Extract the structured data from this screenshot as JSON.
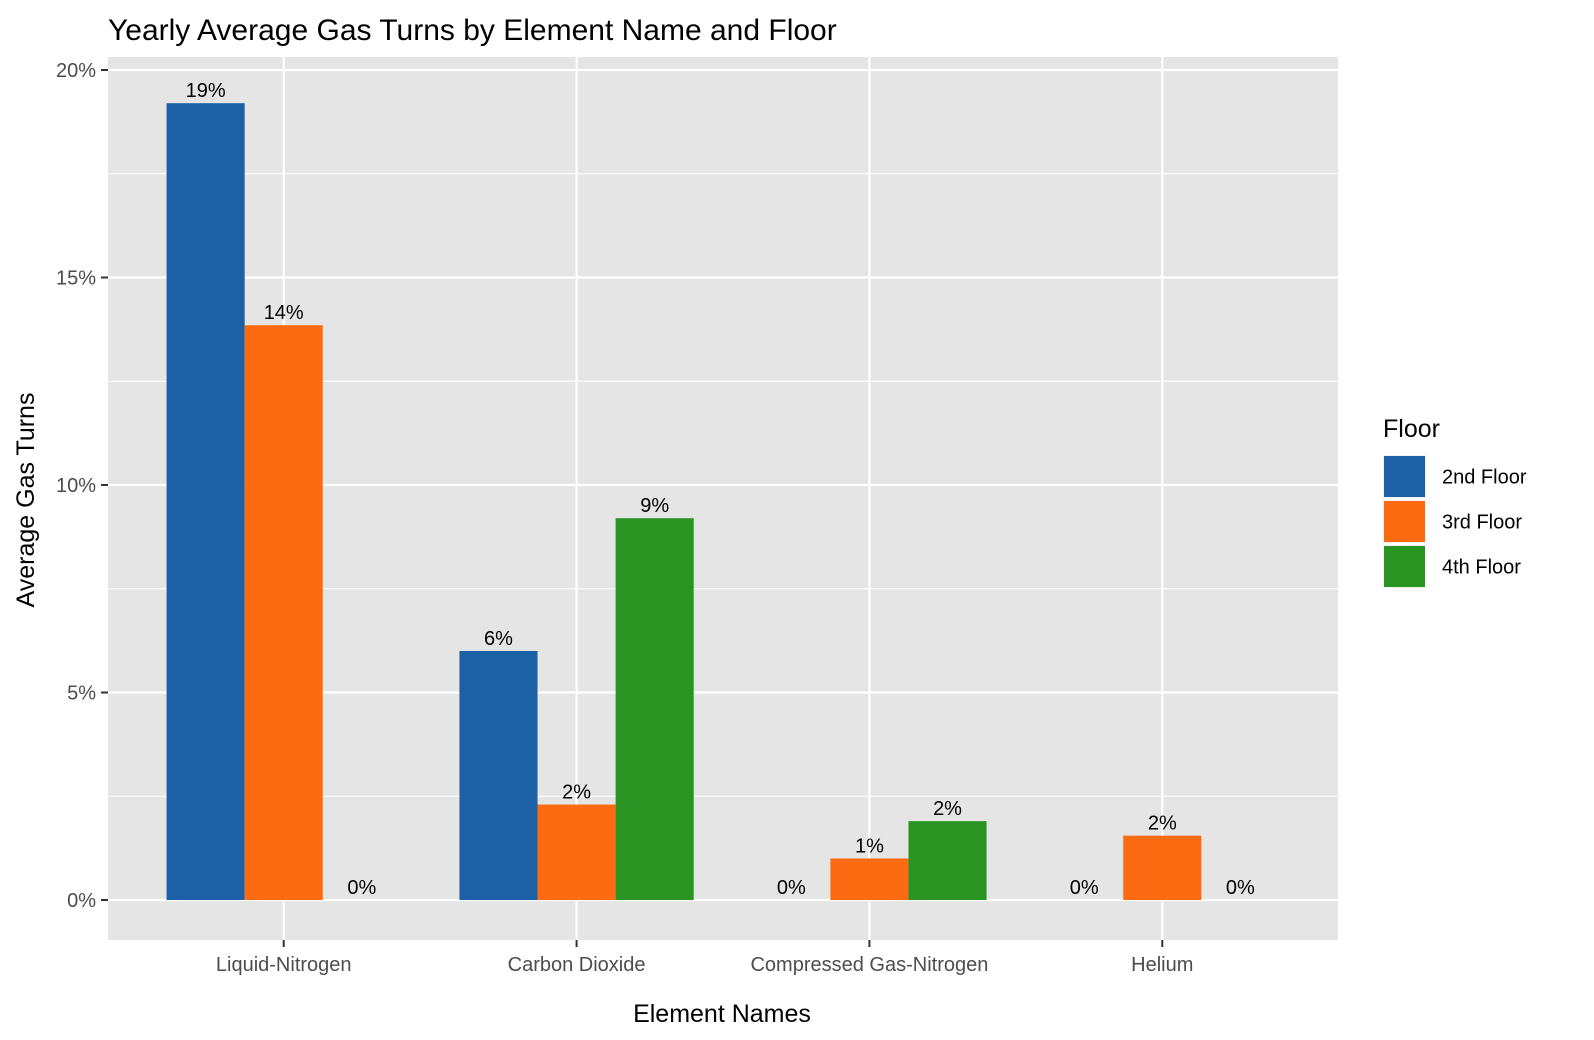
{
  "chart_data": {
    "type": "bar",
    "title": "Yearly Average Gas Turns by Element Name and Floor",
    "xlabel": "Element Names",
    "ylabel": "Average Gas Turns",
    "categories": [
      "Liquid-Nitrogen",
      "Carbon Dioxide",
      "Compressed Gas-Nitrogen",
      "Helium"
    ],
    "series": [
      {
        "name": "2nd Floor",
        "color": "#1c61a5",
        "values": [
          19.2,
          6.0,
          0,
          0
        ],
        "labels": [
          "19%",
          "6%",
          "0%",
          "0%"
        ]
      },
      {
        "name": "3rd Floor",
        "color": "#fc6a12",
        "values": [
          13.85,
          2.3,
          1.0,
          1.55
        ],
        "labels": [
          "14%",
          "2%",
          "1%",
          "2%"
        ]
      },
      {
        "name": "4th Floor",
        "color": "#2a9422",
        "values": [
          0,
          9.2,
          1.9,
          0
        ],
        "labels": [
          "0%",
          "9%",
          "2%",
          "0%"
        ]
      }
    ],
    "ylim": [
      0,
      20
    ],
    "yticks": [
      0,
      5,
      10,
      15,
      20
    ],
    "ytick_labels": [
      "0%",
      "5%",
      "10%",
      "15%",
      "20%"
    ],
    "grid": true,
    "legend": {
      "title": "Floor",
      "position": "right"
    },
    "panel_background": "#e5e5e5",
    "grid_color": "#ffffff"
  }
}
